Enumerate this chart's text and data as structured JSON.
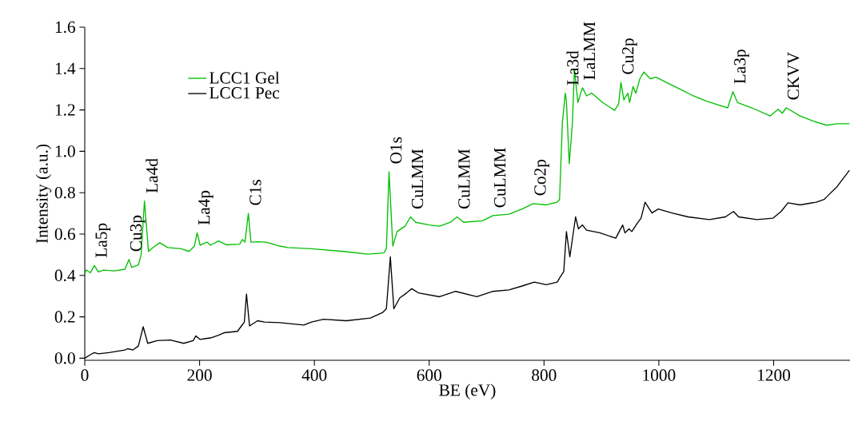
{
  "chart_data": {
    "type": "line",
    "xlabel": "BE (eV)",
    "ylabel": "Intensity (a.u.)",
    "xlim": [
      0,
      1333
    ],
    "ylim": [
      -0.01,
      1.6
    ],
    "xticks": [
      0,
      200,
      400,
      600,
      800,
      1000,
      1200
    ],
    "yticks": [
      {
        "value": 0,
        "label": "0.0"
      },
      {
        "value": 0.2,
        "label": "0.2"
      },
      {
        "value": 0.4,
        "label": "0.4"
      },
      {
        "value": 0.6,
        "label": "0.6"
      },
      {
        "value": 0.8,
        "label": "0.8"
      },
      {
        "value": 1.0,
        "label": "1.0"
      },
      {
        "value": 1.2,
        "label": "1.2"
      },
      {
        "value": 1.4,
        "label": "1.4"
      },
      {
        "value": 1.6,
        "label": "1.6"
      }
    ],
    "legend": "top left",
    "marker": "none",
    "line_style": "solid",
    "series": [
      {
        "name": "LCC1 Gel",
        "color": "#00c000",
        "x": [
          0,
          2.8,
          9.8,
          16.7,
          23.7,
          33,
          51.6,
          70,
          77,
          81.8,
          93.4,
          98,
          104,
          111,
          119,
          130.6,
          144.5,
          168,
          181.7,
          191,
          195.7,
          201,
          213,
          219,
          233,
          246.7,
          270,
          274.6,
          279,
          285,
          289.4,
          302,
          316,
          339.7,
          353.6,
          395,
          451,
          493,
          521,
          525.4,
          530,
          536.6,
          544,
          558,
          567.3,
          576.6,
          600,
          618,
          637,
          648.6,
          660,
          692.7,
          711,
          739,
          762,
          781,
          804,
          823,
          827,
          832,
          837,
          839,
          844,
          849.5,
          853,
          859,
          867,
          874,
          883,
          902,
          923,
          930,
          934,
          939,
          946,
          949,
          955,
          960,
          967,
          974,
          985,
          995,
          1013,
          1037,
          1060,
          1083,
          1106,
          1120,
          1129,
          1137,
          1162,
          1194,
          1208,
          1215,
          1222,
          1246,
          1269,
          1292,
          1311,
          1332
        ],
        "values": [
          0.407,
          0.426,
          0.413,
          0.448,
          0.417,
          0.426,
          0.422,
          0.43,
          0.477,
          0.439,
          0.451,
          0.497,
          0.76,
          0.516,
          0.535,
          0.558,
          0.535,
          0.529,
          0.516,
          0.542,
          0.606,
          0.546,
          0.561,
          0.546,
          0.567,
          0.548,
          0.551,
          0.574,
          0.561,
          0.7,
          0.561,
          0.563,
          0.561,
          0.542,
          0.535,
          0.529,
          0.516,
          0.503,
          0.509,
          0.529,
          0.901,
          0.542,
          0.612,
          0.638,
          0.683,
          0.657,
          0.644,
          0.638,
          0.657,
          0.683,
          0.657,
          0.664,
          0.689,
          0.696,
          0.721,
          0.747,
          0.741,
          0.754,
          0.767,
          1.14,
          1.281,
          1.242,
          0.94,
          1.14,
          1.397,
          1.236,
          1.307,
          1.268,
          1.281,
          1.236,
          1.198,
          1.229,
          1.333,
          1.248,
          1.281,
          1.236,
          1.313,
          1.281,
          1.351,
          1.383,
          1.351,
          1.358,
          1.333,
          1.3,
          1.268,
          1.242,
          1.222,
          1.21,
          1.288,
          1.236,
          1.21,
          1.171,
          1.203,
          1.184,
          1.21,
          1.171,
          1.146,
          1.126,
          1.133,
          1.133
        ]
      },
      {
        "name": "LCC1 Pec",
        "color": "#000000",
        "x": [
          0,
          9.8,
          16.7,
          23.7,
          42.3,
          70,
          74.6,
          84,
          93.4,
          101.8,
          109.6,
          126,
          149,
          172.4,
          189,
          193.5,
          200.6,
          219,
          233,
          242.6,
          266,
          273,
          278,
          281.7,
          287,
          301,
          313,
          339.7,
          350,
          381.5,
          395,
          416,
          455.7,
          497.5,
          518.4,
          525.4,
          532.3,
          538.4,
          548.6,
          558,
          569.6,
          581,
          618,
          646,
          683,
          711,
          739,
          762,
          783,
          804,
          823,
          827,
          834.4,
          839,
          845,
          855,
          860,
          867,
          874,
          897,
          925,
          937,
          941,
          948,
          953,
          962,
          969,
          976,
          988,
          999,
          1023,
          1051,
          1088,
          1116,
          1130,
          1139,
          1171,
          1199,
          1213,
          1225,
          1246,
          1274,
          1288,
          1292,
          1311,
          1332
        ],
        "values": [
          0.0,
          0.017,
          0.027,
          0.021,
          0.027,
          0.04,
          0.046,
          0.04,
          0.059,
          0.152,
          0.072,
          0.085,
          0.088,
          0.072,
          0.085,
          0.108,
          0.091,
          0.098,
          0.111,
          0.123,
          0.13,
          0.156,
          0.175,
          0.31,
          0.156,
          0.181,
          0.175,
          0.172,
          0.169,
          0.16,
          0.175,
          0.188,
          0.181,
          0.194,
          0.22,
          0.239,
          0.49,
          0.239,
          0.291,
          0.31,
          0.336,
          0.316,
          0.297,
          0.323,
          0.297,
          0.323,
          0.33,
          0.349,
          0.368,
          0.355,
          0.368,
          0.387,
          0.419,
          0.612,
          0.49,
          0.683,
          0.625,
          0.644,
          0.619,
          0.606,
          0.58,
          0.644,
          0.606,
          0.625,
          0.612,
          0.651,
          0.677,
          0.754,
          0.702,
          0.721,
          0.702,
          0.683,
          0.67,
          0.683,
          0.709,
          0.683,
          0.67,
          0.677,
          0.709,
          0.751,
          0.741,
          0.754,
          0.767,
          0.779,
          0.831,
          0.908
        ]
      }
    ],
    "annotations": [
      {
        "text": "La5p",
        "x": 16.7,
        "y": 0.448
      },
      {
        "text": "Cu3p",
        "x": 77,
        "y": 0.477
      },
      {
        "text": "La4d",
        "x": 104,
        "y": 0.76
      },
      {
        "text": "La4p",
        "x": 195.7,
        "y": 0.606
      },
      {
        "text": "C1s",
        "x": 285,
        "y": 0.7
      },
      {
        "text": "O1s",
        "x": 530,
        "y": 0.901
      },
      {
        "text": "CuLMM",
        "x": 567.3,
        "y": 0.683
      },
      {
        "text": "CuLMM",
        "x": 648.6,
        "y": 0.683
      },
      {
        "text": "CuLMM",
        "x": 711,
        "y": 0.689
      },
      {
        "text": "Co2p",
        "x": 781,
        "y": 0.747
      },
      {
        "text": "La3d",
        "x": 837,
        "y": 1.281
      },
      {
        "text": "LaLMM",
        "x": 867,
        "y": 1.307
      },
      {
        "text": "Cu2p",
        "x": 934,
        "y": 1.333
      },
      {
        "text": "La3p",
        "x": 1129,
        "y": 1.288
      },
      {
        "text": "CKVV",
        "x": 1222,
        "y": 1.21
      }
    ]
  }
}
